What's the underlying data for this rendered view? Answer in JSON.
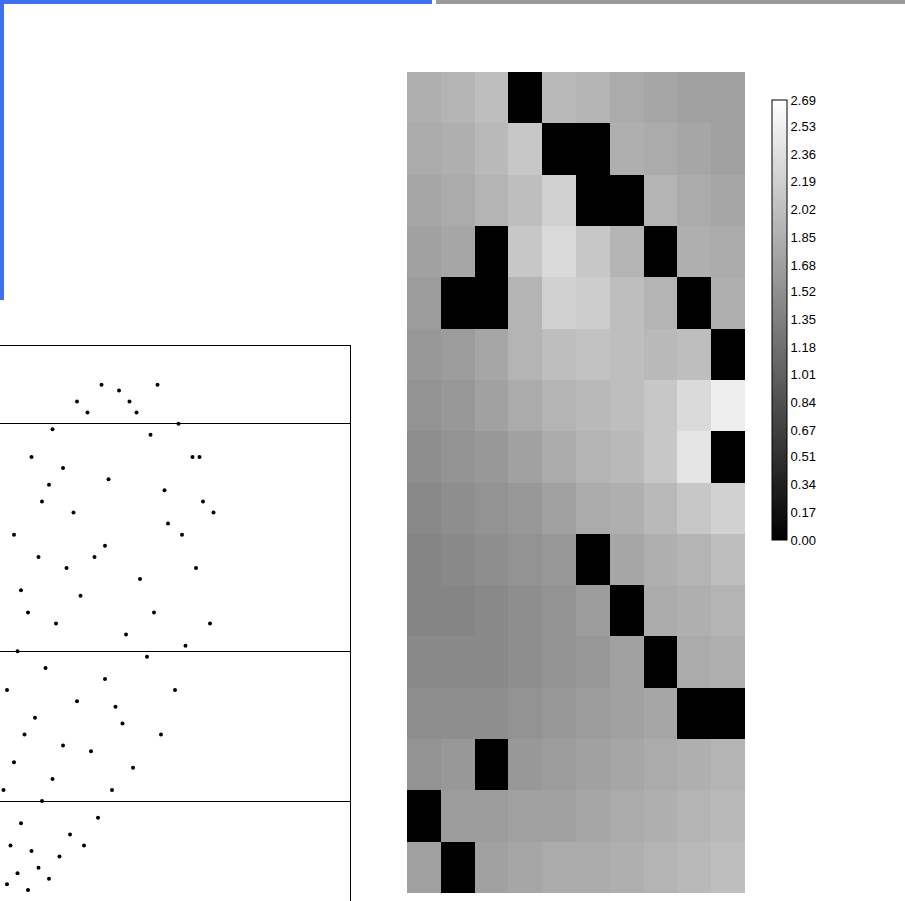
{
  "chart_data": [
    {
      "type": "heatmap",
      "cells": [
        [
          1.85,
          1.9,
          2.0,
          0,
          1.95,
          1.9,
          1.8,
          1.75,
          1.7,
          1.7
        ],
        [
          1.8,
          1.85,
          1.95,
          2.1,
          0,
          0,
          1.85,
          1.8,
          1.75,
          1.7
        ],
        [
          1.75,
          1.8,
          1.9,
          2.0,
          2.2,
          0,
          0,
          1.9,
          1.8,
          1.75
        ],
        [
          1.7,
          1.75,
          0,
          2.1,
          2.3,
          2.1,
          1.9,
          0,
          1.85,
          1.8
        ],
        [
          1.65,
          0,
          0,
          1.9,
          2.2,
          2.15,
          2.0,
          1.9,
          0,
          1.85
        ],
        [
          1.6,
          1.65,
          1.75,
          1.9,
          2.0,
          2.05,
          2.0,
          1.95,
          2.0,
          0
        ],
        [
          1.55,
          1.6,
          1.7,
          1.8,
          1.9,
          1.95,
          2.0,
          2.1,
          2.3,
          2.5
        ],
        [
          1.5,
          1.55,
          1.6,
          1.7,
          1.8,
          1.9,
          1.95,
          2.1,
          2.4,
          0
        ],
        [
          1.45,
          1.5,
          1.55,
          1.6,
          1.7,
          1.8,
          1.85,
          1.95,
          2.1,
          2.2
        ],
        [
          1.4,
          1.45,
          1.5,
          1.55,
          1.6,
          0,
          1.75,
          1.85,
          1.9,
          2.0
        ],
        [
          1.4,
          1.4,
          1.45,
          1.5,
          1.55,
          1.65,
          0,
          1.8,
          1.85,
          1.9
        ],
        [
          1.45,
          1.45,
          1.45,
          1.5,
          1.55,
          1.6,
          1.7,
          0,
          1.8,
          1.85
        ],
        [
          1.5,
          1.5,
          1.5,
          1.55,
          1.6,
          1.65,
          1.7,
          1.75,
          0,
          0
        ],
        [
          1.55,
          1.6,
          0,
          1.6,
          1.65,
          1.7,
          1.75,
          1.8,
          1.85,
          1.9
        ],
        [
          0,
          1.65,
          1.65,
          1.7,
          1.7,
          1.75,
          1.8,
          1.85,
          1.9,
          1.95
        ],
        [
          1.7,
          0,
          1.7,
          1.75,
          1.8,
          1.8,
          1.85,
          1.9,
          1.95,
          2.0
        ]
      ],
      "zlim": [
        0,
        2.69
      ],
      "zticks": [
        {
          "value": 0,
          "label": "0.00"
        },
        0.17,
        0.34,
        0.51,
        0.67,
        0.84,
        1.01,
        1.18,
        1.35,
        1.52,
        1.68,
        1.85,
        2.02,
        2.19,
        2.36,
        2.53,
        2.69
      ]
    },
    {
      "type": "scatter",
      "x": [
        0.02,
        0.05,
        0.08,
        0.03,
        0.11,
        0.06,
        0.14,
        0.01,
        0.09,
        0.04,
        0.17,
        0.12,
        0.07,
        0.2,
        0.15,
        0.02,
        0.24,
        0.1,
        0.18,
        0.05,
        0.28,
        0.13,
        0.22,
        0.08,
        0.32,
        0.16,
        0.26,
        0.35,
        0.19,
        0.3,
        0.04,
        0.38,
        0.23,
        0.42,
        0.12,
        0.33,
        0.27,
        0.46,
        0.09,
        0.36,
        0.5,
        0.21,
        0.4,
        0.15,
        0.53,
        0.31,
        0.44,
        0.56,
        0.25,
        0.48,
        0.6,
        0.37,
        0.18,
        0.52,
        0.29,
        0.58,
        0.43,
        0.11,
        0.55,
        0.34,
        0.47,
        0.61,
        0.06,
        0.39,
        0.22,
        0.51,
        0.14,
        0.57,
        0.45,
        0.3
      ],
      "values": [
        0.03,
        0.05,
        0.02,
        0.1,
        0.06,
        0.14,
        0.04,
        0.2,
        0.09,
        0.25,
        0.08,
        0.18,
        0.3,
        0.12,
        0.22,
        0.38,
        0.1,
        0.33,
        0.28,
        0.45,
        0.15,
        0.42,
        0.36,
        0.52,
        0.2,
        0.5,
        0.27,
        0.32,
        0.6,
        0.4,
        0.66,
        0.24,
        0.55,
        0.44,
        0.72,
        0.35,
        0.62,
        0.3,
        0.8,
        0.48,
        0.38,
        0.7,
        0.58,
        0.85,
        0.46,
        0.76,
        0.52,
        0.6,
        0.88,
        0.68,
        0.5,
        0.9,
        0.78,
        0.66,
        0.93,
        0.72,
        0.84,
        0.62,
        0.8,
        0.92,
        0.74,
        0.7,
        0.56,
        0.88,
        0.9,
        0.86,
        0.75,
        0.8,
        0.93,
        0.64
      ],
      "xlim": [
        0,
        1
      ],
      "ylim": [
        0,
        1
      ],
      "yticks": [
        0.18,
        0.45,
        0.86
      ],
      "grid": true,
      "tick_labels": false,
      "color": "#000000",
      "marker": "circle"
    }
  ]
}
